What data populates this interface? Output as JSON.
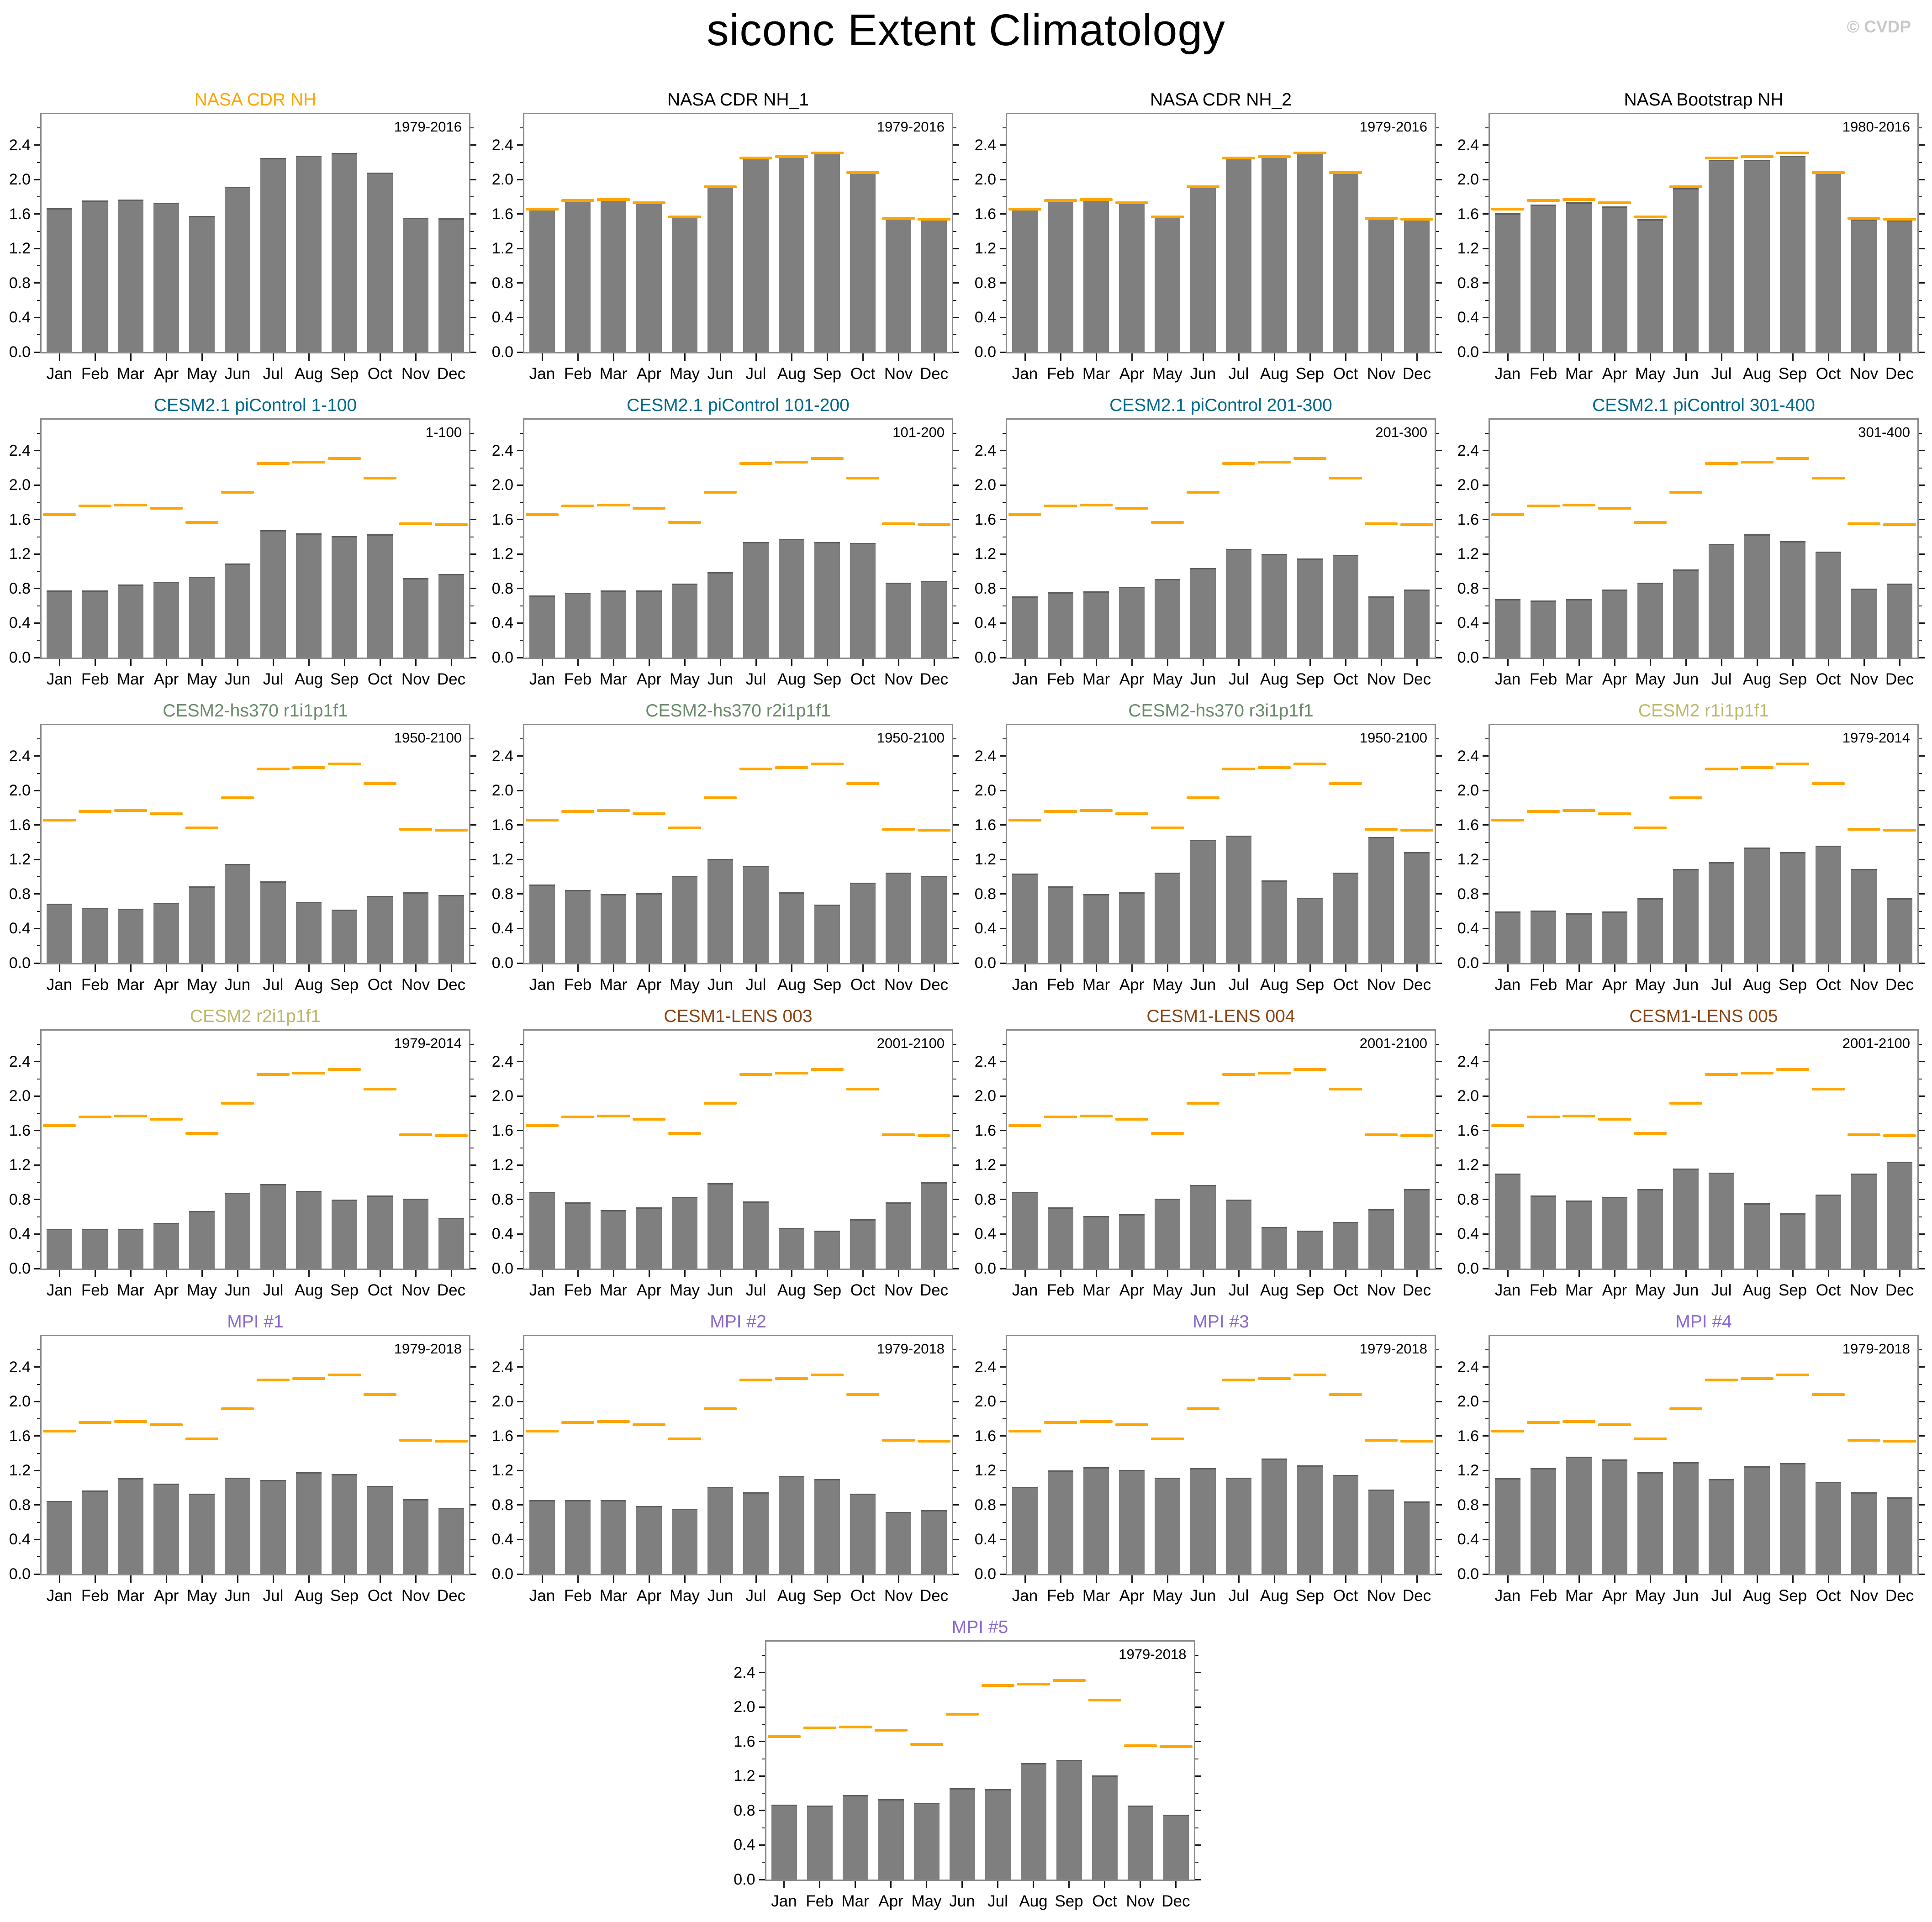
{
  "title": "siconc Extent Climatology",
  "watermark": "© CVDP",
  "colors": {
    "bar_fill": "#7F7F7F",
    "bar_edge": "#5E5E5E",
    "obs_line": "#FFA500",
    "frame": "#8A8A8A",
    "watermark": "#C9C9C9",
    "nasa_obs_title": "#FFA500",
    "black_title": "#000000",
    "picontrol_title": "#00688B",
    "hs370_title": "#698B69",
    "cesm2_title": "#BDB76B",
    "lens_title": "#8B4513",
    "mpi_title": "#8968CD"
  },
  "chart_data": {
    "type": "bar",
    "categories": [
      "Jan",
      "Feb",
      "Mar",
      "Apr",
      "May",
      "Jun",
      "Jul",
      "Aug",
      "Sep",
      "Oct",
      "Nov",
      "Dec"
    ],
    "ylim": [
      0,
      2.76
    ],
    "yticks": [
      0.0,
      0.4,
      0.8,
      1.2,
      1.6,
      2.0,
      2.4
    ],
    "ytick_labels": [
      "0.0",
      "0.4",
      "0.8",
      "1.2",
      "1.6",
      "2.0",
      "2.4"
    ],
    "yticks_minor": [
      0.2,
      0.6,
      1.0,
      1.4,
      1.8,
      2.2,
      2.6
    ],
    "grid": false,
    "legend": "none",
    "obs_reference": {
      "name": "NASA CDR NH",
      "values": [
        1.66,
        1.76,
        1.77,
        1.73,
        1.57,
        1.92,
        2.25,
        2.27,
        2.31,
        2.08,
        1.55,
        1.54
      ]
    },
    "panels": [
      {
        "title": "NASA CDR NH",
        "title_color": "#FFA500",
        "annotation": "1979-2016",
        "show_obs": false,
        "values": [
          1.67,
          1.76,
          1.77,
          1.73,
          1.58,
          1.92,
          2.25,
          2.28,
          2.31,
          2.08,
          1.56,
          1.55
        ]
      },
      {
        "title": "NASA CDR NH_1",
        "title_color": "#000000",
        "annotation": "1979-2016",
        "show_obs": true,
        "values": [
          1.67,
          1.76,
          1.77,
          1.73,
          1.58,
          1.92,
          2.25,
          2.28,
          2.31,
          2.08,
          1.56,
          1.55
        ]
      },
      {
        "title": "NASA CDR NH_2",
        "title_color": "#000000",
        "annotation": "1979-2016",
        "show_obs": true,
        "values": [
          1.67,
          1.76,
          1.77,
          1.73,
          1.58,
          1.92,
          2.25,
          2.28,
          2.31,
          2.08,
          1.56,
          1.55
        ]
      },
      {
        "title": "NASA Bootstrap NH",
        "title_color": "#000000",
        "annotation": "1980-2016",
        "show_obs": true,
        "values": [
          1.61,
          1.71,
          1.74,
          1.69,
          1.54,
          1.9,
          2.23,
          2.23,
          2.28,
          2.08,
          1.54,
          1.53
        ]
      },
      {
        "title": "CESM2.1 piControl 1-100",
        "title_color": "#00688B",
        "annotation": "1-100",
        "show_obs": true,
        "values": [
          0.78,
          0.78,
          0.85,
          0.88,
          0.94,
          1.09,
          1.48,
          1.44,
          1.41,
          1.43,
          0.92,
          0.97
        ]
      },
      {
        "title": "CESM2.1 piControl 101-200",
        "title_color": "#00688B",
        "annotation": "101-200",
        "show_obs": true,
        "values": [
          0.72,
          0.75,
          0.78,
          0.78,
          0.86,
          0.99,
          1.34,
          1.38,
          1.34,
          1.33,
          0.87,
          0.89
        ]
      },
      {
        "title": "CESM2.1 piControl 201-300",
        "title_color": "#00688B",
        "annotation": "201-300",
        "show_obs": true,
        "values": [
          0.71,
          0.76,
          0.77,
          0.82,
          0.91,
          1.04,
          1.26,
          1.2,
          1.15,
          1.19,
          0.71,
          0.79
        ]
      },
      {
        "title": "CESM2.1 piControl 301-400",
        "title_color": "#00688B",
        "annotation": "301-400",
        "show_obs": true,
        "values": [
          0.68,
          0.66,
          0.68,
          0.79,
          0.87,
          1.02,
          1.32,
          1.43,
          1.35,
          1.23,
          0.8,
          0.86
        ]
      },
      {
        "title": "CESM2-hs370 r1i1p1f1",
        "title_color": "#698B69",
        "annotation": "1950-2100",
        "show_obs": true,
        "values": [
          0.69,
          0.64,
          0.63,
          0.7,
          0.89,
          1.15,
          0.95,
          0.71,
          0.62,
          0.78,
          0.82,
          0.79
        ]
      },
      {
        "title": "CESM2-hs370 r2i1p1f1",
        "title_color": "#698B69",
        "annotation": "1950-2100",
        "show_obs": true,
        "values": [
          0.91,
          0.85,
          0.8,
          0.81,
          1.01,
          1.21,
          1.13,
          0.82,
          0.68,
          0.93,
          1.05,
          1.01
        ]
      },
      {
        "title": "CESM2-hs370 r3i1p1f1",
        "title_color": "#698B69",
        "annotation": "1950-2100",
        "show_obs": true,
        "values": [
          1.04,
          0.89,
          0.8,
          0.82,
          1.05,
          1.43,
          1.48,
          0.96,
          0.76,
          1.05,
          1.46,
          1.29
        ]
      },
      {
        "title": "CESM2 r1i1p1f1",
        "title_color": "#BDB76B",
        "annotation": "1979-2014",
        "show_obs": true,
        "values": [
          0.6,
          0.61,
          0.58,
          0.6,
          0.75,
          1.09,
          1.17,
          1.34,
          1.29,
          1.36,
          1.09,
          0.75
        ]
      },
      {
        "title": "CESM2 r2i1p1f1",
        "title_color": "#BDB76B",
        "annotation": "1979-2014",
        "show_obs": true,
        "values": [
          0.46,
          0.46,
          0.46,
          0.53,
          0.67,
          0.88,
          0.98,
          0.9,
          0.8,
          0.85,
          0.81,
          0.59
        ]
      },
      {
        "title": "CESM1-LENS 003",
        "title_color": "#8B4513",
        "annotation": "2001-2100",
        "show_obs": true,
        "values": [
          0.89,
          0.77,
          0.68,
          0.71,
          0.83,
          0.99,
          0.78,
          0.47,
          0.44,
          0.57,
          0.77,
          1.0
        ]
      },
      {
        "title": "CESM1-LENS 004",
        "title_color": "#8B4513",
        "annotation": "2001-2100",
        "show_obs": true,
        "values": [
          0.89,
          0.71,
          0.61,
          0.63,
          0.81,
          0.97,
          0.8,
          0.48,
          0.44,
          0.54,
          0.69,
          0.92
        ]
      },
      {
        "title": "CESM1-LENS 005",
        "title_color": "#8B4513",
        "annotation": "2001-2100",
        "show_obs": true,
        "values": [
          1.1,
          0.85,
          0.79,
          0.83,
          0.92,
          1.16,
          1.11,
          0.76,
          0.64,
          0.86,
          1.1,
          1.24
        ]
      },
      {
        "title": "MPI #1",
        "title_color": "#8968CD",
        "annotation": "1979-2018",
        "show_obs": true,
        "values": [
          0.85,
          0.97,
          1.11,
          1.05,
          0.93,
          1.12,
          1.09,
          1.18,
          1.16,
          1.02,
          0.87,
          0.77
        ]
      },
      {
        "title": "MPI #2",
        "title_color": "#8968CD",
        "annotation": "1979-2018",
        "show_obs": true,
        "values": [
          0.86,
          0.86,
          0.86,
          0.79,
          0.76,
          1.01,
          0.95,
          1.14,
          1.1,
          0.93,
          0.72,
          0.74
        ]
      },
      {
        "title": "MPI #3",
        "title_color": "#8968CD",
        "annotation": "1979-2018",
        "show_obs": true,
        "values": [
          1.01,
          1.2,
          1.24,
          1.21,
          1.12,
          1.23,
          1.12,
          1.34,
          1.26,
          1.15,
          0.98,
          0.84
        ]
      },
      {
        "title": "MPI #4",
        "title_color": "#8968CD",
        "annotation": "1979-2018",
        "show_obs": true,
        "values": [
          1.11,
          1.23,
          1.36,
          1.33,
          1.18,
          1.3,
          1.1,
          1.25,
          1.29,
          1.07,
          0.95,
          0.89
        ]
      },
      {
        "title": "MPI #5",
        "title_color": "#8968CD",
        "annotation": "1979-2018",
        "show_obs": true,
        "values": [
          0.87,
          0.86,
          0.98,
          0.93,
          0.89,
          1.06,
          1.05,
          1.35,
          1.39,
          1.21,
          0.86,
          0.75
        ]
      }
    ]
  }
}
